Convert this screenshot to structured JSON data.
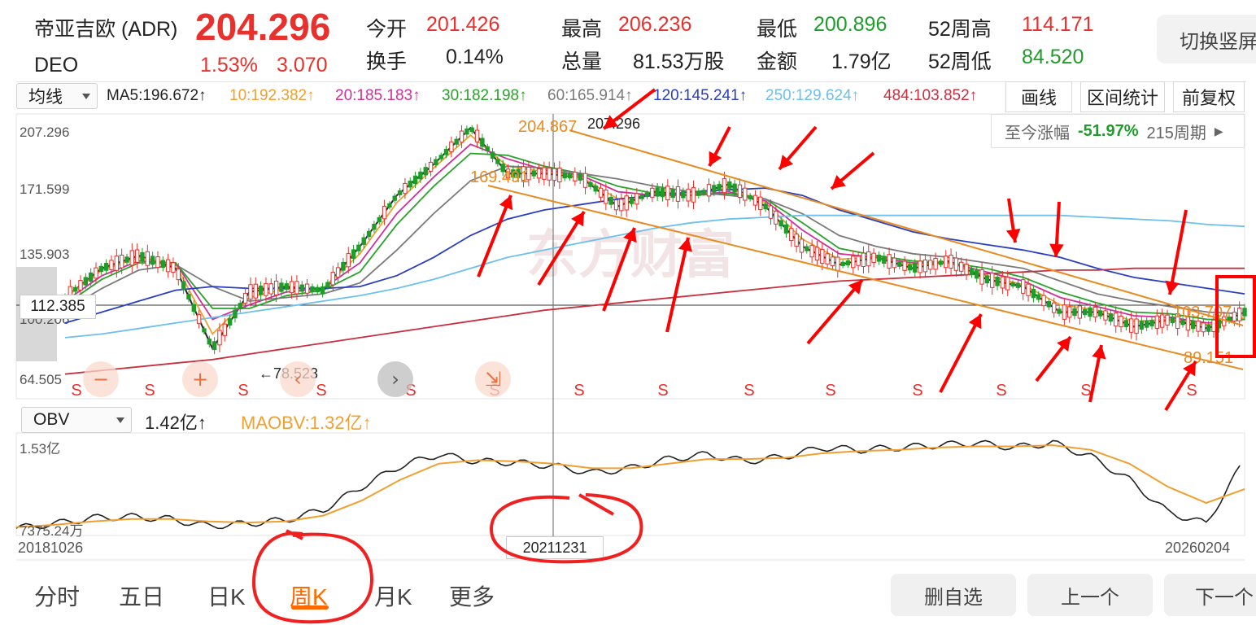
{
  "header": {
    "name": "帝亚吉欧 (ADR)",
    "ticker": "DEO",
    "price": "204.296",
    "change_pct": "1.53%",
    "change_abs": "3.070",
    "stats": [
      {
        "label": "今开",
        "value": "201.426",
        "color": "#e8302c"
      },
      {
        "label": "换手",
        "value": "0.14%",
        "color": "#222222"
      },
      {
        "label": "最高",
        "value": "206.236",
        "color": "#e8302c"
      },
      {
        "label": "总量",
        "value": "81.53万股",
        "color": "#222222"
      },
      {
        "label": "最低",
        "value": "200.896",
        "color": "#1f9c2a"
      },
      {
        "label": "金额",
        "value": "1.79亿",
        "color": "#222222"
      },
      {
        "label": "52周高",
        "value": "114.171",
        "color": "#e8302c"
      },
      {
        "label": "52周低",
        "value": "84.520",
        "color": "#1f9c2a"
      }
    ],
    "switch_button": "切换竖屏"
  },
  "ma_bar": {
    "selector": "均线",
    "items": [
      {
        "text": "MA5:196.672↑",
        "color": "#222222"
      },
      {
        "text": "10:192.382↑",
        "color": "#f0a030"
      },
      {
        "text": "20:185.183↑",
        "color": "#d0309a"
      },
      {
        "text": "30:182.198↑",
        "color": "#2aa32a"
      },
      {
        "text": "60:165.914↑",
        "color": "#7a7a7a"
      },
      {
        "text": "120:145.241↑",
        "color": "#2a3fc0"
      },
      {
        "text": "250:129.624↑",
        "color": "#6cc0ec"
      },
      {
        "text": "484:103.852↑",
        "color": "#c83040"
      }
    ],
    "tools": [
      "画线",
      "区间统计",
      "前复权"
    ]
  },
  "range_stat": {
    "label": "至今涨幅",
    "value": "-51.97%",
    "period": "215周期"
  },
  "price_axis": [
    "207.296",
    "171.599",
    "135.903",
    "100.206",
    "64.505"
  ],
  "crosshair_price": "112.385",
  "annotations": {
    "high_marker": "207.296",
    "high_left": "204.867",
    "low_marker": "←78.523",
    "mid_label": "169.491",
    "right_upper": "103.707",
    "right_lower": "89.151"
  },
  "signal_label": "S",
  "watermark": "东方财富",
  "obv": {
    "selector": "OBV",
    "value": "1.42亿↑",
    "maobv": "MAOBV:1.32亿↑",
    "axis_top": "1.53亿",
    "axis_bottom": "7375.24万"
  },
  "dates": {
    "start": "20181026",
    "crosshair": "20211231",
    "end": "20260204"
  },
  "tabs": [
    {
      "label": "分时",
      "active": false
    },
    {
      "label": "五日",
      "active": false
    },
    {
      "label": "日K",
      "active": false
    },
    {
      "label": "周K",
      "active": true
    },
    {
      "label": "月K",
      "active": false
    },
    {
      "label": "更多",
      "active": false
    }
  ],
  "buttons": {
    "remove": "删自选",
    "prev": "上一个",
    "next": "下一个"
  },
  "colors": {
    "up": "#e8302c",
    "down": "#1f9c2a",
    "accent": "#ff6a00",
    "annotation": "#ff0000",
    "channel": "#e88a20"
  },
  "chart_data": {
    "type": "line",
    "x_start": "20181026",
    "x_end": "20260204",
    "ylim": [
      64.505,
      207.296
    ],
    "series": [
      {
        "name": "MA5",
        "color": "#222222",
        "values": [
          112,
          128,
          135,
          128,
          84,
          115,
          118,
          116,
          140,
          168,
          185,
          205,
          180,
          180,
          178,
          162,
          170,
          168,
          174,
          162,
          140,
          130,
          134,
          128,
          132,
          122,
          118,
          104,
          104,
          96,
          100,
          95,
          104
        ]
      },
      {
        "name": "MA10",
        "color": "#f0a030",
        "values": [
          112,
          127,
          134,
          130,
          92,
          112,
          117,
          117,
          136,
          164,
          183,
          201,
          184,
          181,
          178,
          166,
          168,
          168,
          172,
          164,
          144,
          133,
          134,
          130,
          131,
          124,
          119,
          108,
          105,
          99,
          100,
          97,
          101
        ]
      },
      {
        "name": "MA20",
        "color": "#d0309a",
        "values": [
          110,
          124,
          132,
          131,
          100,
          108,
          115,
          117,
          131,
          158,
          178,
          196,
          188,
          182,
          179,
          170,
          168,
          168,
          170,
          165,
          149,
          136,
          134,
          131,
          131,
          126,
          121,
          112,
          107,
          102,
          101,
          98,
          100
        ]
      },
      {
        "name": "MA30",
        "color": "#2aa32a",
        "values": [
          108,
          122,
          131,
          131,
          106,
          106,
          113,
          116,
          126,
          152,
          173,
          191,
          190,
          184,
          180,
          173,
          169,
          168,
          169,
          166,
          153,
          139,
          135,
          132,
          131,
          128,
          123,
          115,
          109,
          104,
          103,
          100,
          100
        ]
      },
      {
        "name": "MA60",
        "color": "#7a7a7a",
        "values": [
          105,
          117,
          127,
          130,
          118,
          110,
          112,
          114,
          120,
          138,
          158,
          176,
          184,
          183,
          180,
          177,
          173,
          170,
          168,
          166,
          158,
          146,
          140,
          136,
          134,
          131,
          128,
          121,
          114,
          110,
          107,
          104,
          103
        ]
      },
      {
        "name": "MA120",
        "color": "#2a3fc0",
        "values": [
          98,
          104,
          110,
          116,
          118,
          117,
          117,
          117,
          118,
          124,
          134,
          146,
          155,
          160,
          163,
          166,
          168,
          170,
          171,
          172,
          168,
          160,
          154,
          148,
          144,
          141,
          138,
          134,
          128,
          123,
          120,
          117,
          114
        ]
      },
      {
        "name": "MA250",
        "color": "#6cc0ec",
        "values": [
          90,
          92,
          95,
          98,
          101,
          104,
          107,
          110,
          113,
          117,
          122,
          128,
          134,
          138,
          142,
          146,
          150,
          153,
          155,
          156,
          157,
          157,
          157,
          157,
          157,
          157,
          157,
          157,
          156,
          155,
          154,
          152,
          151
        ]
      },
      {
        "name": "MA484",
        "color": "#c83040",
        "values": [
          70,
          72,
          74,
          76,
          78,
          81,
          84,
          87,
          90,
          93,
          96,
          99,
          102,
          105,
          107,
          109,
          111,
          113,
          115,
          117,
          119,
          121,
          122,
          123,
          124,
          125,
          126,
          127,
          127,
          128,
          128,
          128,
          128
        ]
      }
    ],
    "obv": {
      "ylim": [
        73752400,
        153000000
      ],
      "obv_values": [
        76,
        80,
        85,
        86,
        84,
        78,
        80,
        83,
        92,
        112,
        130,
        140,
        134,
        133,
        130,
        124,
        128,
        136,
        140,
        134,
        138,
        146,
        144,
        146,
        148,
        150,
        146,
        150,
        138,
        118,
        90,
        80,
        135
      ],
      "maobv_values": [
        77,
        79,
        82,
        84,
        84,
        82,
        81,
        82,
        87,
        100,
        118,
        132,
        135,
        134,
        132,
        128,
        128,
        132,
        136,
        136,
        137,
        141,
        143,
        144,
        146,
        147,
        147,
        148,
        144,
        132,
        112,
        98,
        110
      ]
    }
  }
}
